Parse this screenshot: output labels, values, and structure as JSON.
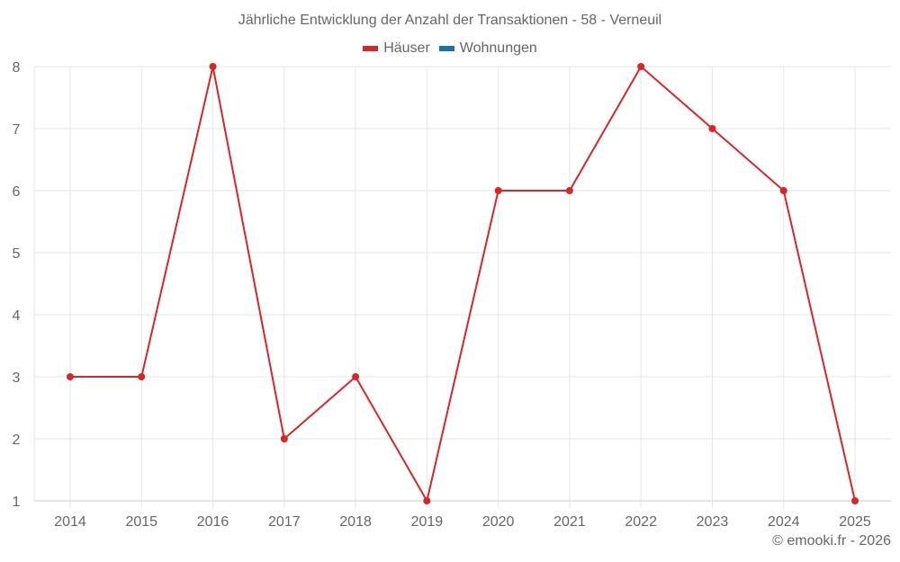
{
  "chart_data": {
    "type": "line",
    "title": "Jährliche Entwicklung der Anzahl der Transaktionen - 58 - Verneuil",
    "categories": [
      "2014",
      "2015",
      "2016",
      "2017",
      "2018",
      "2019",
      "2020",
      "2021",
      "2022",
      "2023",
      "2024",
      "2025"
    ],
    "series": [
      {
        "name": "Häuser",
        "color": "#d62728",
        "values": [
          3,
          3,
          8,
          2,
          3,
          1,
          6,
          6,
          8,
          7,
          6,
          1
        ]
      },
      {
        "name": "Wohnungen",
        "color": "#1f6fa8",
        "values": []
      }
    ],
    "xlabel": "",
    "ylabel": "",
    "ylim": [
      1,
      8
    ],
    "yticks": [
      "1",
      "2",
      "3",
      "4",
      "5",
      "6",
      "7",
      "8"
    ],
    "grid": true,
    "legend_position": "top"
  },
  "header": {
    "title": "Jährliche Entwicklung der Anzahl der Transaktionen - 58 - Verneuil"
  },
  "legend": {
    "items": [
      {
        "label": "Häuser",
        "color": "#d62728"
      },
      {
        "label": "Wohnungen",
        "color": "#1f6fa8"
      }
    ]
  },
  "footer": {
    "credit": "© emooki.fr - 2026"
  }
}
